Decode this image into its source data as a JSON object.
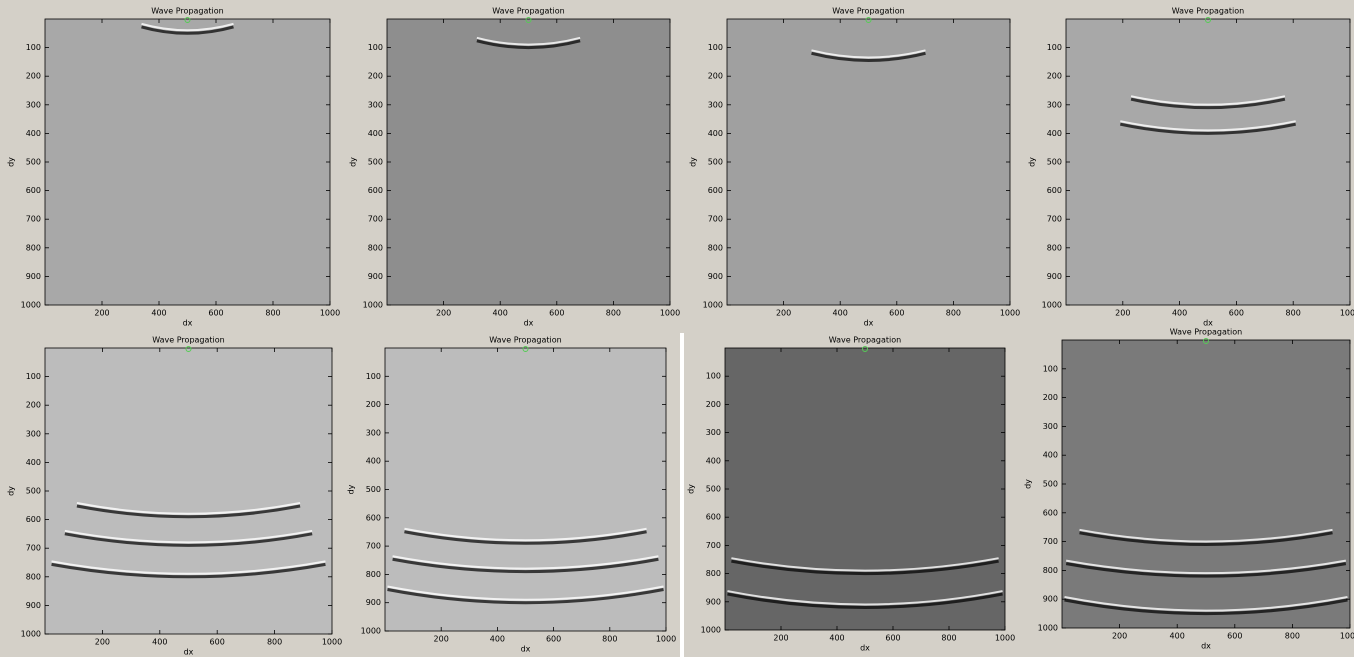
{
  "chart_data": [
    {
      "type": "image",
      "title": "Wave Propagation",
      "x_label": "dx",
      "y_label": "dy",
      "xlim": [
        0,
        1000
      ],
      "ylim": [
        0,
        1000
      ],
      "y_reversed": true,
      "xticks": [
        200,
        400,
        600,
        800,
        1000
      ],
      "yticks": [
        100,
        200,
        300,
        400,
        500,
        600,
        700,
        800,
        900,
        1000
      ],
      "color": "#a8a8a8",
      "source": {
        "x": 500,
        "y": 0
      },
      "fronts": [
        50
      ]
    },
    {
      "type": "image",
      "title": "Wave Propagation",
      "x_label": "dx",
      "y_label": "dy",
      "xlim": [
        0,
        1000
      ],
      "ylim": [
        0,
        1000
      ],
      "y_reversed": true,
      "xticks": [
        200,
        400,
        600,
        800,
        1000
      ],
      "yticks": [
        100,
        200,
        300,
        400,
        500,
        600,
        700,
        800,
        900,
        1000
      ],
      "color": "#8e8e8e",
      "source": {
        "x": 500,
        "y": 0
      },
      "fronts": [
        100
      ]
    },
    {
      "type": "image",
      "title": "Wave Propagation",
      "x_label": "dx",
      "y_label": "dy",
      "xlim": [
        0,
        1000
      ],
      "ylim": [
        0,
        1000
      ],
      "y_reversed": true,
      "xticks": [
        200,
        400,
        600,
        800,
        1000
      ],
      "yticks": [
        100,
        200,
        300,
        400,
        500,
        600,
        700,
        800,
        900,
        1000
      ],
      "color": "#a0a0a0",
      "source": {
        "x": 500,
        "y": 0
      },
      "fronts": [
        145
      ]
    },
    {
      "type": "image",
      "title": "Wave Propagation",
      "x_label": "dx",
      "y_label": "dy",
      "xlim": [
        0,
        1000
      ],
      "ylim": [
        0,
        1000
      ],
      "y_reversed": true,
      "xticks": [
        200,
        400,
        600,
        800,
        1000
      ],
      "yticks": [
        100,
        200,
        300,
        400,
        500,
        600,
        700,
        800,
        900,
        1000
      ],
      "color": "#a8a8a8",
      "source": {
        "x": 500,
        "y": 0
      },
      "fronts": [
        310,
        400
      ]
    },
    {
      "type": "image",
      "title": "Wave Propagation",
      "x_label": "dx",
      "y_label": "dy",
      "xlim": [
        0,
        1000
      ],
      "ylim": [
        0,
        1000
      ],
      "y_reversed": true,
      "xticks": [
        200,
        400,
        600,
        800,
        1000
      ],
      "yticks": [
        100,
        200,
        300,
        400,
        500,
        600,
        700,
        800,
        900,
        1000
      ],
      "color": "#bcbcbc",
      "source": {
        "x": 500,
        "y": 0
      },
      "fronts": [
        590,
        690,
        800
      ]
    },
    {
      "type": "image",
      "title": "Wave Propagation",
      "x_label": "dx",
      "y_label": "dy",
      "xlim": [
        0,
        1000
      ],
      "ylim": [
        0,
        1000
      ],
      "y_reversed": true,
      "xticks": [
        200,
        400,
        600,
        800,
        1000
      ],
      "yticks": [
        100,
        200,
        300,
        400,
        500,
        600,
        700,
        800,
        900,
        1000
      ],
      "color": "#bcbcbc",
      "source": {
        "x": 500,
        "y": 0
      },
      "fronts": [
        690,
        790,
        900
      ]
    },
    {
      "type": "image",
      "title": "Wave Propagation",
      "x_label": "dx",
      "y_label": "dy",
      "xlim": [
        0,
        1000
      ],
      "ylim": [
        0,
        1000
      ],
      "y_reversed": true,
      "xticks": [
        200,
        400,
        600,
        800,
        1000
      ],
      "yticks": [
        100,
        200,
        300,
        400,
        500,
        600,
        700,
        800,
        900,
        1000
      ],
      "color": "#666666",
      "source": {
        "x": 500,
        "y": 0
      },
      "fronts": [
        800,
        920
      ]
    },
    {
      "type": "image",
      "title": "Wave Propagation",
      "x_label": "dx",
      "y_label": "dy",
      "xlim": [
        0,
        1000
      ],
      "ylim": [
        0,
        1000
      ],
      "y_reversed": true,
      "xticks": [
        200,
        400,
        600,
        800,
        1000
      ],
      "yticks": [
        100,
        200,
        300,
        400,
        500,
        600,
        700,
        800,
        900,
        1000
      ],
      "color": "#7a7a7a",
      "source": {
        "x": 500,
        "y": 0
      },
      "fronts": [
        710,
        820,
        950
      ]
    }
  ]
}
